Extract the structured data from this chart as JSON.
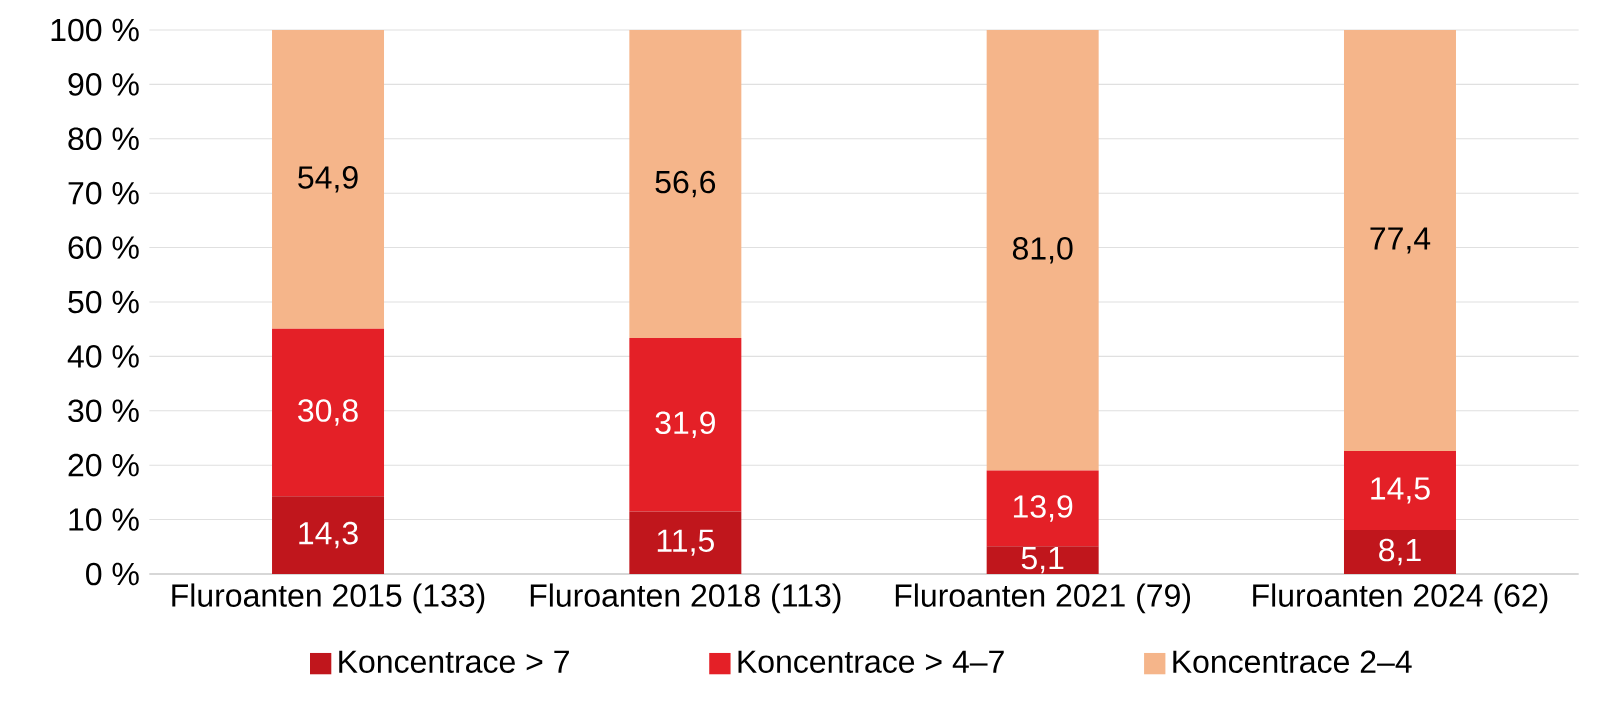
{
  "chart_data": {
    "type": "bar",
    "stacked": true,
    "categories": [
      "Fluroanten 2015 (133)",
      "Fluroanten 2018 (113)",
      "Fluroanten 2021 (79)",
      "Fluroanten 2024 (62)"
    ],
    "series": [
      {
        "name": "Koncentrace > 7",
        "color": "#c0161c",
        "values": [
          14.3,
          11.5,
          5.1,
          8.1
        ],
        "value_labels": [
          "14,3",
          "11,5",
          "5,1",
          "8,1"
        ]
      },
      {
        "name": "Koncentrace > 4–7",
        "color": "#e42027",
        "values": [
          30.8,
          31.9,
          13.9,
          14.5
        ],
        "value_labels": [
          "30,8",
          "31,9",
          "13,9",
          "14,5"
        ]
      },
      {
        "name": "Koncentrace 2–4",
        "color": "#f5b58a",
        "values": [
          54.9,
          56.6,
          81.0,
          77.4
        ],
        "value_labels": [
          "54,9",
          "56,6",
          "81,0",
          "77,4"
        ]
      }
    ],
    "ylim": [
      0,
      100
    ],
    "yticks": [
      {
        "value": 0,
        "label": "0 %"
      },
      {
        "value": 10,
        "label": "10 %"
      },
      {
        "value": 20,
        "label": "20 %"
      },
      {
        "value": 30,
        "label": "30 %"
      },
      {
        "value": 40,
        "label": "40 %"
      },
      {
        "value": 50,
        "label": "50 %"
      },
      {
        "value": 60,
        "label": "60 %"
      },
      {
        "value": 70,
        "label": "70 %"
      },
      {
        "value": 80,
        "label": "80 %"
      },
      {
        "value": 90,
        "label": "90 %"
      },
      {
        "value": 100,
        "label": "100 %"
      }
    ],
    "grid": "y",
    "legend": "bottom"
  }
}
